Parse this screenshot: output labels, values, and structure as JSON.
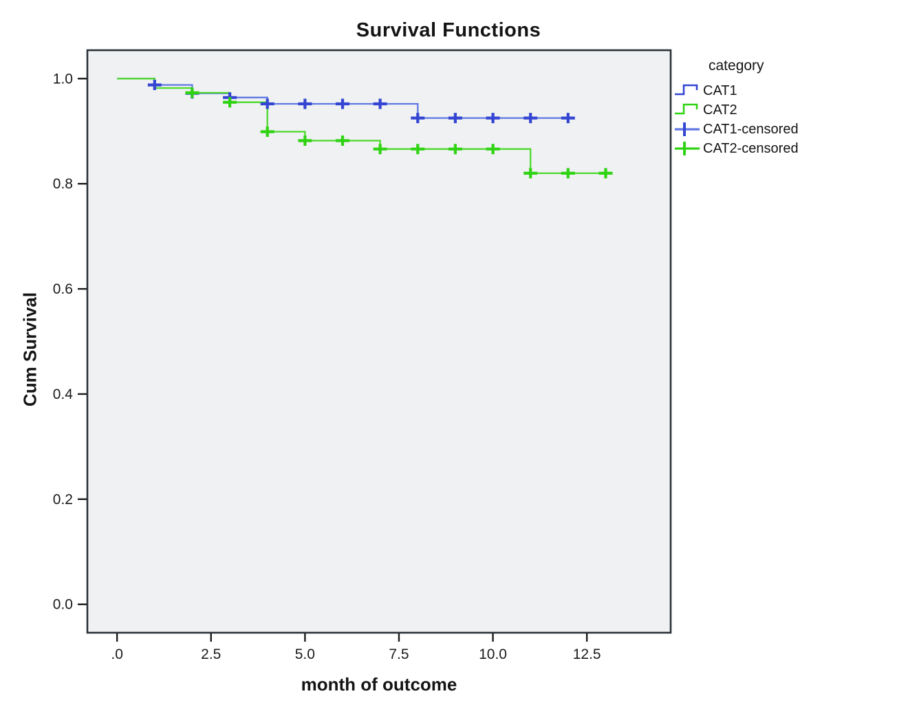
{
  "page": {
    "background": "#ffffff",
    "text_color": "#141414"
  },
  "chart_data": {
    "type": "line",
    "subtype": "kaplan-meier-step",
    "title": "Survival Functions",
    "xlabel": "month of outcome",
    "ylabel": "Cum Survival",
    "xlim": [
      -0.79,
      14.73
    ],
    "ylim": [
      -0.054,
      1.054
    ],
    "grid": false,
    "plot_bg": "#eff1f2",
    "frame_color": "#2b3136",
    "tick_color": "#1a1a1a",
    "x_ticks": {
      "values": [
        0,
        2.5,
        5,
        7.5,
        10,
        12.5
      ],
      "labels": [
        ".0",
        "2.5",
        "5.0",
        "7.5",
        "10.0",
        "12.5"
      ]
    },
    "y_ticks": {
      "values": [
        0,
        0.2,
        0.4,
        0.6,
        0.8,
        1.0
      ],
      "labels": [
        "0.0",
        "0.2",
        "0.4",
        "0.6",
        "0.8",
        "1.0"
      ]
    },
    "series": [
      {
        "name": "CAT1",
        "line_color": "#5f77e2",
        "color": "#3345d2",
        "steps": [
          [
            0,
            1.0
          ],
          [
            1,
            1.0
          ],
          [
            1,
            0.988
          ],
          [
            2,
            0.988
          ],
          [
            2,
            0.972
          ],
          [
            3,
            0.972
          ],
          [
            3,
            0.964
          ],
          [
            4,
            0.964
          ],
          [
            4,
            0.952
          ],
          [
            8,
            0.952
          ],
          [
            8,
            0.925
          ],
          [
            12.15,
            0.925
          ]
        ],
        "censored": [
          [
            1,
            0.988
          ],
          [
            2,
            0.972
          ],
          [
            3,
            0.964
          ],
          [
            4,
            0.952
          ],
          [
            5,
            0.952
          ],
          [
            6,
            0.952
          ],
          [
            7,
            0.952
          ],
          [
            8,
            0.925
          ],
          [
            9,
            0.925
          ],
          [
            10,
            0.925
          ],
          [
            11,
            0.925
          ],
          [
            12,
            0.925
          ]
        ]
      },
      {
        "name": "CAT2",
        "line_color": "#4cd92c",
        "color": "#2fd312",
        "steps": [
          [
            0,
            1.0
          ],
          [
            1,
            1.0
          ],
          [
            1,
            0.982
          ],
          [
            2,
            0.982
          ],
          [
            2,
            0.973
          ],
          [
            3,
            0.973
          ],
          [
            3,
            0.955
          ],
          [
            4,
            0.955
          ],
          [
            4,
            0.899
          ],
          [
            5,
            0.899
          ],
          [
            5,
            0.882
          ],
          [
            7,
            0.882
          ],
          [
            7,
            0.866
          ],
          [
            11,
            0.866
          ],
          [
            11,
            0.82
          ],
          [
            13.1,
            0.82
          ]
        ],
        "censored": [
          [
            2,
            0.973
          ],
          [
            3,
            0.955
          ],
          [
            4,
            0.899
          ],
          [
            5,
            0.882
          ],
          [
            6,
            0.882
          ],
          [
            7,
            0.866
          ],
          [
            8,
            0.866
          ],
          [
            9,
            0.866
          ],
          [
            10,
            0.866
          ],
          [
            11,
            0.82
          ],
          [
            12,
            0.82
          ],
          [
            13,
            0.82
          ]
        ]
      }
    ],
    "legend": {
      "position": "right",
      "title": "category",
      "entries": [
        {
          "label": "CAT1",
          "glyph": "step-line-icon",
          "series": "CAT1"
        },
        {
          "label": "CAT2",
          "glyph": "step-line-icon",
          "series": "CAT2"
        },
        {
          "label": "CAT1-censored",
          "glyph": "censor-plus-icon",
          "series": "CAT1"
        },
        {
          "label": "CAT2-censored",
          "glyph": "censor-plus-icon",
          "series": "CAT2"
        }
      ]
    }
  }
}
